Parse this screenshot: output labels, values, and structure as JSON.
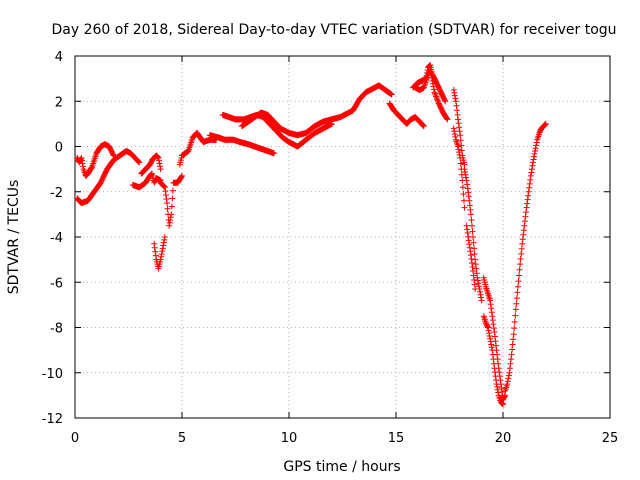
{
  "chart_data": {
    "type": "scatter",
    "title": "Day 260 of 2018, Sidereal Day-to-day VTEC variation (SDTVAR) for receiver togu",
    "xlabel": "GPS time / hours",
    "ylabel": "SDTVAR / TECUs",
    "xlim": [
      0,
      25
    ],
    "ylim": [
      -12,
      4
    ],
    "xticks": [
      0,
      5,
      10,
      15,
      20,
      25
    ],
    "yticks": [
      -12,
      -10,
      -8,
      -6,
      -4,
      -2,
      0,
      2,
      4
    ],
    "grid": true,
    "marker": "+",
    "color": "#ff0000",
    "series": [
      {
        "segments": [
          [
            [
              0.1,
              -0.5
            ],
            [
              0.2,
              -0.7
            ],
            [
              0.3,
              -0.5
            ],
            [
              0.4,
              -1.0
            ],
            [
              0.5,
              -1.3
            ],
            [
              0.6,
              -1.2
            ],
            [
              0.8,
              -0.9
            ],
            [
              1.0,
              -0.3
            ],
            [
              1.2,
              0.0
            ],
            [
              1.4,
              0.1
            ],
            [
              1.6,
              0.0
            ],
            [
              1.7,
              -0.2
            ],
            [
              1.8,
              -0.4
            ]
          ],
          [
            [
              0.1,
              -2.3
            ],
            [
              0.3,
              -2.5
            ],
            [
              0.6,
              -2.4
            ],
            [
              0.9,
              -2.0
            ],
            [
              1.2,
              -1.6
            ],
            [
              1.5,
              -1.0
            ],
            [
              1.8,
              -0.6
            ],
            [
              2.1,
              -0.4
            ],
            [
              2.4,
              -0.2
            ],
            [
              2.6,
              -0.3
            ],
            [
              2.8,
              -0.5
            ],
            [
              3.0,
              -0.7
            ]
          ],
          [
            [
              2.7,
              -1.7
            ],
            [
              3.0,
              -1.8
            ],
            [
              3.3,
              -1.6
            ],
            [
              3.5,
              -1.3
            ],
            [
              3.6,
              -1.2
            ],
            [
              3.7,
              -1.6
            ],
            [
              3.8,
              -1.4
            ],
            [
              4.0,
              -1.5
            ]
          ],
          [
            [
              3.1,
              -1.2
            ],
            [
              3.3,
              -1.0
            ],
            [
              3.5,
              -0.8
            ],
            [
              3.6,
              -0.6
            ],
            [
              3.7,
              -0.5
            ],
            [
              3.8,
              -0.4
            ],
            [
              3.9,
              -0.5
            ],
            [
              4.0,
              -1.0
            ]
          ],
          [
            [
              3.7,
              -4.3
            ],
            [
              3.8,
              -5.0
            ],
            [
              3.9,
              -5.4
            ],
            [
              4.0,
              -5.0
            ],
            [
              4.1,
              -4.5
            ],
            [
              4.2,
              -4.0
            ]
          ],
          [
            [
              4.0,
              -1.6
            ],
            [
              4.2,
              -1.8
            ],
            [
              4.3,
              -2.5
            ],
            [
              4.4,
              -3.5
            ],
            [
              4.5,
              -3.0
            ],
            [
              4.6,
              -1.6
            ],
            [
              4.8,
              -1.6
            ],
            [
              5.0,
              -1.3
            ]
          ],
          [
            [
              4.9,
              -0.8
            ],
            [
              5.0,
              -0.4
            ],
            [
              5.3,
              -0.2
            ],
            [
              5.5,
              0.4
            ],
            [
              5.7,
              0.6
            ],
            [
              6.0,
              0.2
            ],
            [
              6.3,
              0.3
            ],
            [
              6.6,
              0.3
            ]
          ],
          [
            [
              6.3,
              0.5
            ],
            [
              6.7,
              0.4
            ],
            [
              7.0,
              0.3
            ],
            [
              7.4,
              0.3
            ],
            [
              7.7,
              0.2
            ],
            [
              8.1,
              0.1
            ],
            [
              8.4,
              0.0
            ],
            [
              8.7,
              -0.1
            ],
            [
              9.0,
              -0.2
            ],
            [
              9.3,
              -0.3
            ]
          ],
          [
            [
              6.9,
              1.4
            ],
            [
              7.2,
              1.3
            ],
            [
              7.5,
              1.2
            ],
            [
              7.9,
              1.2
            ],
            [
              8.2,
              1.3
            ],
            [
              8.5,
              1.4
            ],
            [
              8.8,
              1.3
            ],
            [
              9.1,
              1.0
            ],
            [
              9.4,
              0.7
            ],
            [
              9.7,
              0.4
            ],
            [
              10.0,
              0.2
            ],
            [
              10.4,
              0.0
            ],
            [
              10.8,
              0.3
            ],
            [
              11.2,
              0.6
            ],
            [
              11.6,
              0.8
            ],
            [
              12.0,
              1.0
            ]
          ],
          [
            [
              7.8,
              0.9
            ],
            [
              8.1,
              1.1
            ],
            [
              8.4,
              1.3
            ],
            [
              8.7,
              1.5
            ],
            [
              9.0,
              1.4
            ],
            [
              9.3,
              1.1
            ],
            [
              9.6,
              0.8
            ],
            [
              10.0,
              0.6
            ],
            [
              10.4,
              0.5
            ],
            [
              10.8,
              0.6
            ],
            [
              11.2,
              0.9
            ],
            [
              11.6,
              1.1
            ],
            [
              12.0,
              1.2
            ],
            [
              12.4,
              1.3
            ],
            [
              12.8,
              1.5
            ],
            [
              13.0,
              1.6
            ],
            [
              13.3,
              2.1
            ],
            [
              13.6,
              2.4
            ],
            [
              14.0,
              2.6
            ],
            [
              14.2,
              2.7
            ],
            [
              14.5,
              2.5
            ],
            [
              14.8,
              2.3
            ]
          ],
          [
            [
              14.7,
              1.9
            ],
            [
              14.9,
              1.6
            ],
            [
              15.1,
              1.4
            ],
            [
              15.3,
              1.2
            ],
            [
              15.5,
              1.0
            ],
            [
              15.7,
              1.2
            ],
            [
              15.9,
              1.3
            ],
            [
              16.1,
              1.1
            ],
            [
              16.3,
              0.9
            ]
          ],
          [
            [
              15.8,
              2.6
            ],
            [
              16.0,
              2.8
            ],
            [
              16.2,
              2.9
            ],
            [
              16.4,
              3.0
            ],
            [
              16.5,
              3.5
            ],
            [
              16.6,
              3.6
            ],
            [
              16.7,
              3.2
            ],
            [
              16.9,
              2.8
            ],
            [
              17.1,
              2.4
            ],
            [
              17.3,
              2.0
            ]
          ],
          [
            [
              15.9,
              2.6
            ],
            [
              16.1,
              2.5
            ],
            [
              16.3,
              2.6
            ],
            [
              16.5,
              3.2
            ],
            [
              16.6,
              3.4
            ],
            [
              16.8,
              2.4
            ],
            [
              17.0,
              1.9
            ],
            [
              17.2,
              1.5
            ],
            [
              17.4,
              1.2
            ]
          ],
          [
            [
              17.7,
              2.5
            ],
            [
              17.8,
              2.0
            ],
            [
              17.9,
              1.2
            ],
            [
              18.0,
              0.5
            ],
            [
              18.1,
              -0.4
            ],
            [
              18.2,
              -0.8
            ]
          ],
          [
            [
              17.7,
              0.8
            ],
            [
              17.8,
              0.3
            ],
            [
              17.9,
              0.0
            ],
            [
              18.0,
              -0.5
            ],
            [
              18.1,
              -1.5
            ],
            [
              18.2,
              -2.7
            ]
          ],
          [
            [
              18.2,
              -1.0
            ],
            [
              18.3,
              -1.5
            ],
            [
              18.4,
              -2.2
            ],
            [
              18.5,
              -3.0
            ],
            [
              18.6,
              -4.0
            ],
            [
              18.7,
              -5.0
            ],
            [
              18.8,
              -5.8
            ],
            [
              18.9,
              -6.3
            ],
            [
              19.0,
              -6.8
            ]
          ],
          [
            [
              18.3,
              -3.5
            ],
            [
              18.5,
              -4.8
            ],
            [
              18.6,
              -5.5
            ],
            [
              18.7,
              -6.3
            ]
          ],
          [
            [
              19.1,
              -5.8
            ],
            [
              19.2,
              -6.2
            ],
            [
              19.3,
              -6.5
            ],
            [
              19.4,
              -6.8
            ],
            [
              19.5,
              -7.5
            ],
            [
              19.6,
              -8.2
            ],
            [
              19.7,
              -9.0
            ],
            [
              19.8,
              -9.8
            ],
            [
              19.9,
              -10.5
            ],
            [
              20.0,
              -11.2
            ],
            [
              20.1,
              -11.0
            ]
          ],
          [
            [
              19.1,
              -7.5
            ],
            [
              19.2,
              -7.8
            ],
            [
              19.3,
              -8.0
            ],
            [
              19.4,
              -8.5
            ],
            [
              19.5,
              -9.0
            ],
            [
              19.6,
              -9.8
            ],
            [
              19.7,
              -10.5
            ],
            [
              19.8,
              -11.0
            ],
            [
              19.9,
              -11.3
            ],
            [
              20.0,
              -11.4
            ]
          ],
          [
            [
              20.1,
              -10.8
            ],
            [
              20.2,
              -10.5
            ],
            [
              20.3,
              -10.0
            ],
            [
              20.4,
              -9.2
            ],
            [
              20.5,
              -8.3
            ],
            [
              20.6,
              -7.2
            ],
            [
              20.7,
              -6.2
            ],
            [
              20.8,
              -5.2
            ],
            [
              20.9,
              -4.3
            ],
            [
              21.0,
              -3.5
            ],
            [
              21.1,
              -2.7
            ],
            [
              21.2,
              -2.0
            ],
            [
              21.3,
              -1.3
            ],
            [
              21.4,
              -0.7
            ],
            [
              21.5,
              -0.2
            ],
            [
              21.6,
              0.3
            ],
            [
              21.7,
              0.6
            ],
            [
              21.8,
              0.8
            ],
            [
              21.9,
              0.9
            ],
            [
              22.0,
              1.0
            ]
          ]
        ]
      }
    ]
  }
}
